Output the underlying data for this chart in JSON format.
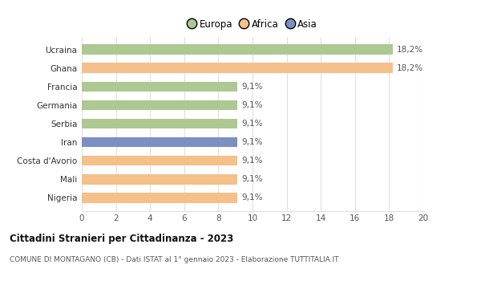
{
  "categories": [
    "Nigeria",
    "Mali",
    "Costa d'Avorio",
    "Iran",
    "Serbia",
    "Germania",
    "Francia",
    "Ghana",
    "Ucraina"
  ],
  "values": [
    9.1,
    9.1,
    9.1,
    9.1,
    9.1,
    9.1,
    9.1,
    18.2,
    18.2
  ],
  "bar_colors": [
    "#f5c08a",
    "#f5c08a",
    "#f5c08a",
    "#7b8fc2",
    "#aec891",
    "#aec891",
    "#aec891",
    "#f5c08a",
    "#aec891"
  ],
  "labels": [
    "9,1%",
    "9,1%",
    "9,1%",
    "9,1%",
    "9,1%",
    "9,1%",
    "9,1%",
    "18,2%",
    "18,2%"
  ],
  "xlim": [
    0,
    20
  ],
  "xticks": [
    0,
    2,
    4,
    6,
    8,
    10,
    12,
    14,
    16,
    18,
    20
  ],
  "legend_labels": [
    "Europa",
    "Africa",
    "Asia"
  ],
  "legend_colors": [
    "#aec891",
    "#f5c08a",
    "#7b8fc2"
  ],
  "title": "Cittadini Stranieri per Cittadinanza - 2023",
  "subtitle": "COMUNE DI MONTAGANO (CB) - Dati ISTAT al 1° gennaio 2023 - Elaborazione TUTTITALIA.IT",
  "bg_color": "#ffffff",
  "grid_color": "#e0e0e0"
}
